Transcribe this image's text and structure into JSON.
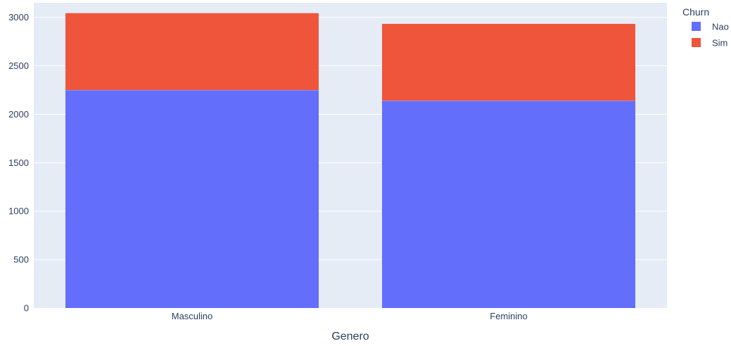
{
  "chart_data": {
    "type": "bar",
    "barmode": "stack",
    "categories": [
      "Masculino",
      "Feminino"
    ],
    "series": [
      {
        "name": "Nao",
        "values": [
          2250,
          2140
        ],
        "color": "#636efa"
      },
      {
        "name": "Sim",
        "values": [
          795,
          795
        ],
        "color": "#ef553b"
      }
    ],
    "xlabel": "Genero",
    "ylabel": "",
    "ylim": [
      0,
      3150
    ],
    "yticks": [
      0,
      500,
      1000,
      1500,
      2000,
      2500,
      3000
    ],
    "legend": {
      "title": "Churn",
      "position": "top-right"
    },
    "grid": true,
    "plot_bgcolor": "#e5ecf6"
  }
}
